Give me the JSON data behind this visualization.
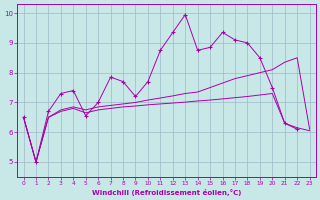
{
  "xlabel": "Windchill (Refroidissement éolien,°C)",
  "xlim": [
    -0.5,
    23.5
  ],
  "ylim": [
    4.5,
    10.3
  ],
  "xticks": [
    0,
    1,
    2,
    3,
    4,
    5,
    6,
    7,
    8,
    9,
    10,
    11,
    12,
    13,
    14,
    15,
    16,
    17,
    18,
    19,
    20,
    21,
    22,
    23
  ],
  "yticks": [
    5,
    6,
    7,
    8,
    9,
    10
  ],
  "bg_color": "#c8e8e8",
  "line_color": "#aa00aa",
  "grid_color": "#a0b8c8",
  "line1_x": [
    0,
    1,
    2,
    3,
    4,
    5,
    6,
    7,
    8,
    9,
    10,
    11,
    12,
    13,
    14,
    15,
    16,
    17,
    18,
    19,
    20,
    21,
    22
  ],
  "line1_y": [
    6.5,
    5.0,
    6.7,
    7.3,
    7.4,
    6.55,
    7.0,
    7.85,
    7.7,
    7.2,
    7.7,
    8.75,
    9.35,
    9.95,
    8.75,
    8.85,
    9.35,
    9.1,
    9.0,
    8.5,
    7.5,
    6.3,
    6.1
  ],
  "line2_x": [
    0,
    1,
    2,
    3,
    4,
    5,
    6,
    7,
    8,
    9,
    10,
    11,
    12,
    13,
    14,
    15,
    16,
    17,
    18,
    19,
    20,
    21,
    22,
    23
  ],
  "line2_y": [
    6.5,
    5.0,
    6.5,
    6.75,
    6.85,
    6.75,
    6.85,
    6.9,
    6.95,
    7.0,
    7.08,
    7.15,
    7.22,
    7.3,
    7.35,
    7.5,
    7.65,
    7.8,
    7.9,
    8.0,
    8.1,
    8.35,
    8.5,
    6.1
  ],
  "line3_x": [
    0,
    1,
    2,
    3,
    4,
    5,
    6,
    7,
    8,
    9,
    10,
    11,
    12,
    13,
    14,
    15,
    16,
    17,
    18,
    19,
    20,
    21,
    22,
    23
  ],
  "line3_y": [
    6.5,
    5.0,
    6.5,
    6.7,
    6.8,
    6.65,
    6.75,
    6.8,
    6.85,
    6.88,
    6.92,
    6.95,
    6.98,
    7.01,
    7.05,
    7.08,
    7.12,
    7.16,
    7.2,
    7.25,
    7.3,
    6.3,
    6.15,
    6.05
  ],
  "marker": "+"
}
